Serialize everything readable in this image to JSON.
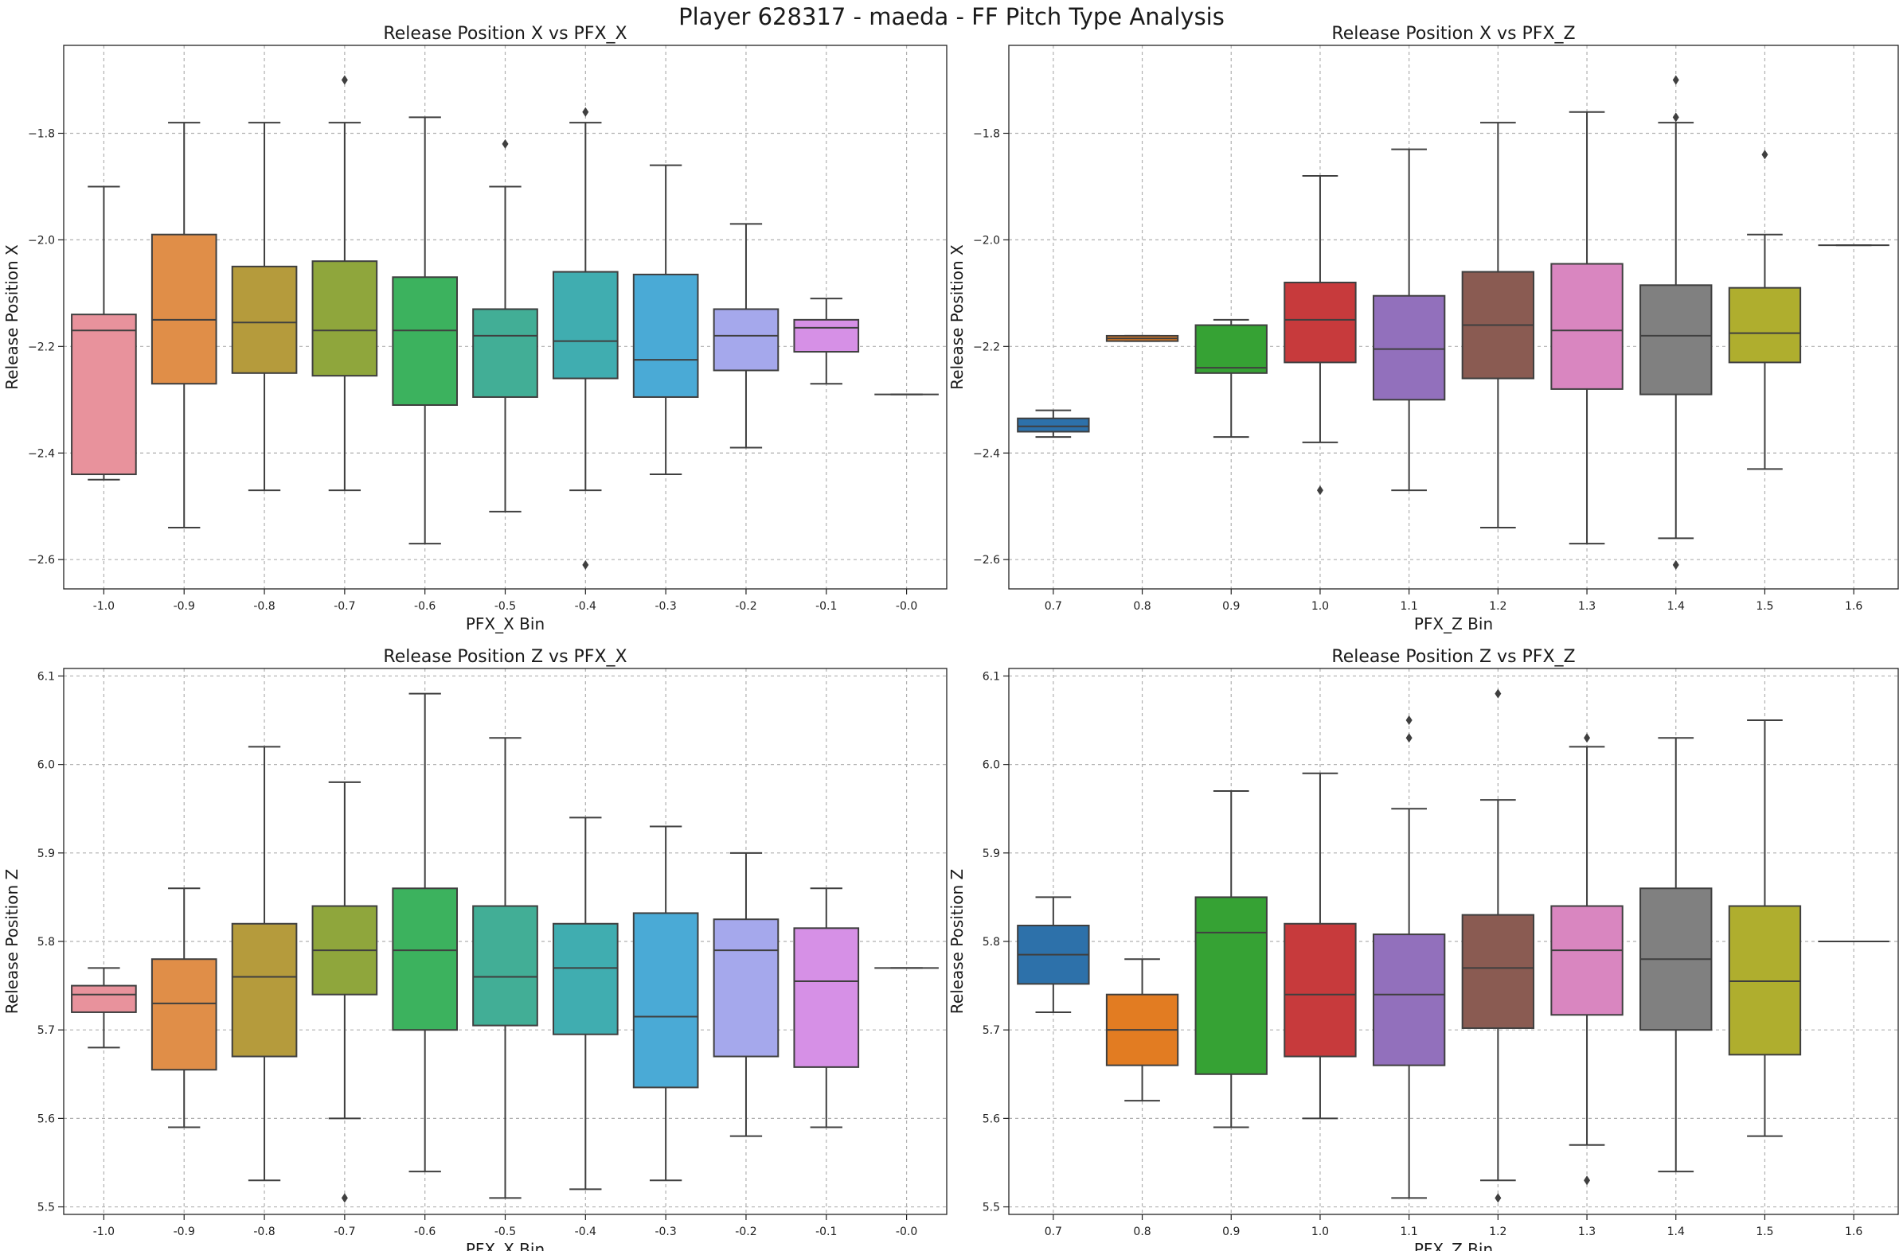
{
  "suptitle": "Player 628317 - maeda - FF Pitch Type Analysis",
  "chart_data": [
    {
      "type": "box",
      "title": "Release Position X vs PFX_X",
      "xlabel": "PFX_X Bin",
      "ylabel": "Release Position X",
      "ylim": [
        -2.655,
        -1.635
      ],
      "yticks": [
        -2.6,
        -2.4,
        -2.2,
        -2.0,
        -1.8
      ],
      "yticklabels": [
        "−2.6",
        "−2.4",
        "−2.2",
        "−2.0",
        "−1.8"
      ],
      "grid": true,
      "categories": [
        "-1.0",
        "-0.9",
        "-0.8",
        "-0.7",
        "-0.6",
        "-0.5",
        "-0.4",
        "-0.3",
        "-0.2",
        "-0.1",
        "-0.0"
      ],
      "colors": [
        "#e8929c",
        "#e08e48",
        "#b59b3c",
        "#8fa63c",
        "#3cb25e",
        "#42ae96",
        "#40adb0",
        "#4aaad6",
        "#a5a8ec",
        "#d690e6",
        "#4c72b0"
      ],
      "boxes": [
        {
          "whislo": -2.45,
          "q1": -2.44,
          "med": -2.17,
          "q3": -2.14,
          "whishi": -1.9,
          "fliers": []
        },
        {
          "whislo": -2.54,
          "q1": -2.27,
          "med": -2.15,
          "q3": -1.99,
          "whishi": -1.78,
          "fliers": []
        },
        {
          "whislo": -2.47,
          "q1": -2.25,
          "med": -2.155,
          "q3": -2.05,
          "whishi": -1.78,
          "fliers": []
        },
        {
          "whislo": -2.47,
          "q1": -2.255,
          "med": -2.17,
          "q3": -2.04,
          "whishi": -1.78,
          "fliers": [
            -1.7
          ]
        },
        {
          "whislo": -2.57,
          "q1": -2.31,
          "med": -2.17,
          "q3": -2.07,
          "whishi": -1.77,
          "fliers": []
        },
        {
          "whislo": -2.51,
          "q1": -2.295,
          "med": -2.18,
          "q3": -2.13,
          "whishi": -1.9,
          "fliers": [
            -1.82
          ]
        },
        {
          "whislo": -2.47,
          "q1": -2.26,
          "med": -2.19,
          "q3": -2.06,
          "whishi": -1.78,
          "fliers": [
            -1.76,
            -2.61
          ]
        },
        {
          "whislo": -2.44,
          "q1": -2.295,
          "med": -2.225,
          "q3": -2.065,
          "whishi": -1.86,
          "fliers": []
        },
        {
          "whislo": -2.39,
          "q1": -2.245,
          "med": -2.18,
          "q3": -2.13,
          "whishi": -1.97,
          "fliers": []
        },
        {
          "whislo": -2.27,
          "q1": -2.21,
          "med": -2.165,
          "q3": -2.15,
          "whishi": -2.11,
          "fliers": []
        },
        {
          "whislo": -2.29,
          "q1": -2.29,
          "med": -2.29,
          "q3": -2.29,
          "whishi": -2.29,
          "fliers": []
        }
      ]
    },
    {
      "type": "box",
      "title": "Release Position X vs PFX_Z",
      "xlabel": "PFX_Z Bin",
      "ylabel": "Release Position X",
      "ylim": [
        -2.655,
        -1.635
      ],
      "yticks": [
        -2.6,
        -2.4,
        -2.2,
        -2.0,
        -1.8
      ],
      "yticklabels": [
        "−2.6",
        "−2.4",
        "−2.2",
        "−2.0",
        "−1.8"
      ],
      "grid": true,
      "categories": [
        "0.7",
        "0.8",
        "0.9",
        "1.0",
        "1.1",
        "1.2",
        "1.3",
        "1.4",
        "1.5",
        "1.6"
      ],
      "colors": [
        "#2d71aa",
        "#e27c22",
        "#36a234",
        "#c73a3c",
        "#9270bc",
        "#8a5b52",
        "#d986c0",
        "#808080",
        "#afae2e",
        "#2ab7c4"
      ],
      "boxes": [
        {
          "whislo": -2.37,
          "q1": -2.36,
          "med": -2.35,
          "q3": -2.335,
          "whishi": -2.32,
          "fliers": []
        },
        {
          "whislo": -2.19,
          "q1": -2.19,
          "med": -2.185,
          "q3": -2.18,
          "whishi": -2.18,
          "fliers": []
        },
        {
          "whislo": -2.37,
          "q1": -2.25,
          "med": -2.24,
          "q3": -2.16,
          "whishi": -2.15,
          "fliers": []
        },
        {
          "whislo": -2.38,
          "q1": -2.23,
          "med": -2.15,
          "q3": -2.08,
          "whishi": -1.88,
          "fliers": [
            -2.47
          ]
        },
        {
          "whislo": -2.47,
          "q1": -2.3,
          "med": -2.205,
          "q3": -2.105,
          "whishi": -1.83,
          "fliers": []
        },
        {
          "whislo": -2.54,
          "q1": -2.26,
          "med": -2.16,
          "q3": -2.06,
          "whishi": -1.78,
          "fliers": []
        },
        {
          "whislo": -2.57,
          "q1": -2.28,
          "med": -2.17,
          "q3": -2.045,
          "whishi": -1.76,
          "fliers": []
        },
        {
          "whislo": -2.56,
          "q1": -2.29,
          "med": -2.18,
          "q3": -2.085,
          "whishi": -1.78,
          "fliers": [
            -1.7,
            -1.77,
            -2.61
          ]
        },
        {
          "whislo": -2.43,
          "q1": -2.23,
          "med": -2.175,
          "q3": -2.09,
          "whishi": -1.99,
          "fliers": [
            -1.84
          ]
        },
        {
          "whislo": -2.01,
          "q1": -2.01,
          "med": -2.01,
          "q3": -2.01,
          "whishi": -2.01,
          "fliers": []
        }
      ]
    },
    {
      "type": "box",
      "title": "Release Position Z vs PFX_X",
      "xlabel": "PFX_X Bin",
      "ylabel": "Release Position Z",
      "ylim": [
        5.4915,
        6.1085
      ],
      "yticks": [
        5.5,
        5.6,
        5.7,
        5.8,
        5.9,
        6.0,
        6.1
      ],
      "yticklabels": [
        "5.5",
        "5.6",
        "5.7",
        "5.8",
        "5.9",
        "6.0",
        "6.1"
      ],
      "grid": true,
      "categories": [
        "-1.0",
        "-0.9",
        "-0.8",
        "-0.7",
        "-0.6",
        "-0.5",
        "-0.4",
        "-0.3",
        "-0.2",
        "-0.1",
        "-0.0"
      ],
      "colors": [
        "#e8929c",
        "#e08e48",
        "#b59b3c",
        "#8fa63c",
        "#3cb25e",
        "#42ae96",
        "#40adb0",
        "#4aaad6",
        "#a5a8ec",
        "#d690e6",
        "#4c72b0"
      ],
      "boxes": [
        {
          "whislo": 5.68,
          "q1": 5.72,
          "med": 5.74,
          "q3": 5.75,
          "whishi": 5.77,
          "fliers": []
        },
        {
          "whislo": 5.59,
          "q1": 5.655,
          "med": 5.73,
          "q3": 5.78,
          "whishi": 5.86,
          "fliers": []
        },
        {
          "whislo": 5.53,
          "q1": 5.67,
          "med": 5.76,
          "q3": 5.82,
          "whishi": 6.02,
          "fliers": []
        },
        {
          "whislo": 5.6,
          "q1": 5.74,
          "med": 5.79,
          "q3": 5.84,
          "whishi": 5.98,
          "fliers": [
            5.51
          ]
        },
        {
          "whislo": 5.54,
          "q1": 5.7,
          "med": 5.79,
          "q3": 5.86,
          "whishi": 6.08,
          "fliers": []
        },
        {
          "whislo": 5.51,
          "q1": 5.705,
          "med": 5.76,
          "q3": 5.84,
          "whishi": 6.03,
          "fliers": []
        },
        {
          "whislo": 5.52,
          "q1": 5.695,
          "med": 5.77,
          "q3": 5.82,
          "whishi": 5.94,
          "fliers": []
        },
        {
          "whislo": 5.53,
          "q1": 5.635,
          "med": 5.715,
          "q3": 5.832,
          "whishi": 5.93,
          "fliers": []
        },
        {
          "whislo": 5.58,
          "q1": 5.67,
          "med": 5.79,
          "q3": 5.825,
          "whishi": 5.9,
          "fliers": []
        },
        {
          "whislo": 5.59,
          "q1": 5.658,
          "med": 5.755,
          "q3": 5.815,
          "whishi": 5.86,
          "fliers": []
        },
        {
          "whislo": 5.77,
          "q1": 5.77,
          "med": 5.77,
          "q3": 5.77,
          "whishi": 5.77,
          "fliers": []
        }
      ]
    },
    {
      "type": "box",
      "title": "Release Position Z vs PFX_Z",
      "xlabel": "PFX_Z Bin",
      "ylabel": "Release Position Z",
      "ylim": [
        5.4915,
        6.1085
      ],
      "yticks": [
        5.5,
        5.6,
        5.7,
        5.8,
        5.9,
        6.0,
        6.1
      ],
      "yticklabels": [
        "5.5",
        "5.6",
        "5.7",
        "5.8",
        "5.9",
        "6.0",
        "6.1"
      ],
      "grid": true,
      "categories": [
        "0.7",
        "0.8",
        "0.9",
        "1.0",
        "1.1",
        "1.2",
        "1.3",
        "1.4",
        "1.5",
        "1.6"
      ],
      "colors": [
        "#2d71aa",
        "#e27c22",
        "#36a234",
        "#c73a3c",
        "#9270bc",
        "#8a5b52",
        "#d986c0",
        "#808080",
        "#afae2e",
        "#2ab7c4"
      ],
      "boxes": [
        {
          "whislo": 5.72,
          "q1": 5.752,
          "med": 5.785,
          "q3": 5.818,
          "whishi": 5.85,
          "fliers": []
        },
        {
          "whislo": 5.62,
          "q1": 5.66,
          "med": 5.7,
          "q3": 5.74,
          "whishi": 5.78,
          "fliers": []
        },
        {
          "whislo": 5.59,
          "q1": 5.65,
          "med": 5.81,
          "q3": 5.85,
          "whishi": 5.97,
          "fliers": []
        },
        {
          "whislo": 5.6,
          "q1": 5.67,
          "med": 5.74,
          "q3": 5.82,
          "whishi": 5.99,
          "fliers": []
        },
        {
          "whislo": 5.51,
          "q1": 5.66,
          "med": 5.74,
          "q3": 5.808,
          "whishi": 5.95,
          "fliers": [
            6.03,
            6.05
          ]
        },
        {
          "whislo": 5.53,
          "q1": 5.702,
          "med": 5.77,
          "q3": 5.83,
          "whishi": 5.96,
          "fliers": [
            5.51,
            6.08
          ]
        },
        {
          "whislo": 5.57,
          "q1": 5.717,
          "med": 5.79,
          "q3": 5.84,
          "whishi": 6.02,
          "fliers": [
            5.53,
            6.03
          ]
        },
        {
          "whislo": 5.54,
          "q1": 5.7,
          "med": 5.78,
          "q3": 5.86,
          "whishi": 6.03,
          "fliers": []
        },
        {
          "whislo": 5.58,
          "q1": 5.672,
          "med": 5.755,
          "q3": 5.84,
          "whishi": 6.05,
          "fliers": []
        },
        {
          "whislo": 5.8,
          "q1": 5.8,
          "med": 5.8,
          "q3": 5.8,
          "whishi": 5.8,
          "fliers": []
        }
      ]
    }
  ]
}
